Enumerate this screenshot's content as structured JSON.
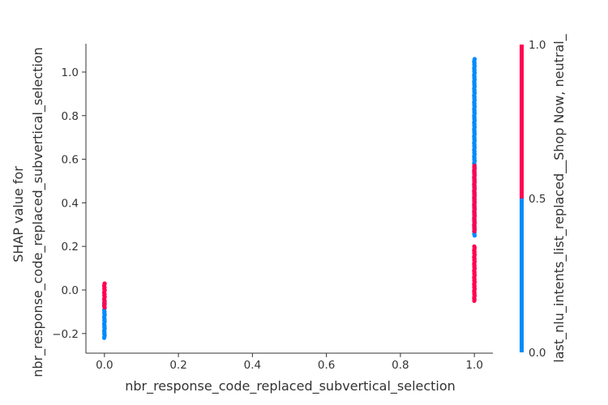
{
  "chart_data": {
    "type": "scatter",
    "xlabel": "nbr_response_code_replaced_subvertical_selection",
    "ylabel_lines": [
      "SHAP value for",
      "nbr_response_code_replaced_subvertical_selection"
    ],
    "colorbar_label": "last_nlu_intents_list_replaced__Shop Now, neutral_",
    "xlim": [
      -0.05,
      1.05
    ],
    "ylim": [
      -0.29,
      1.13
    ],
    "x_ticks": [
      "0.0",
      "0.2",
      "0.4",
      "0.6",
      "0.8",
      "1.0"
    ],
    "y_ticks": [
      "−0.2",
      "0.0",
      "0.2",
      "0.4",
      "0.6",
      "0.8",
      "1.0"
    ],
    "colorbar_ticks": [
      "0.0",
      "0.5",
      "1.0"
    ],
    "colors": {
      "low": "#008bfb",
      "high": "#ff0052"
    },
    "series": [
      {
        "color": "low",
        "x": 0,
        "y_range": [
          -0.22,
          -0.05
        ]
      },
      {
        "color": "high",
        "x": 0,
        "y_range": [
          -0.08,
          0.03
        ]
      },
      {
        "color": "high",
        "x": 1,
        "y_range": [
          -0.05,
          0.2
        ]
      },
      {
        "color": "low",
        "x": 1,
        "y_range": [
          0.25,
          1.06
        ]
      },
      {
        "color": "high",
        "x": 1,
        "y_range": [
          0.27,
          0.57
        ]
      }
    ]
  }
}
